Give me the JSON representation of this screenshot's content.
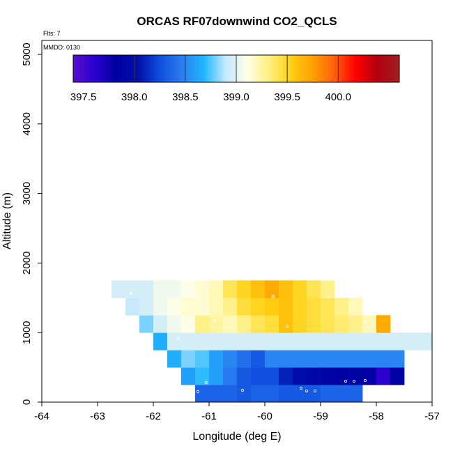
{
  "chart_data": {
    "type": "heatmap",
    "title": "ORCAS RF07downwind CO2_QCLS",
    "xlabel": "Longitude (deg E)",
    "ylabel": "Altitude (m)",
    "flts_note": "Flts: 7",
    "mmdd_note": "MMDD: 0130",
    "xlim": [
      -64,
      -57
    ],
    "ylim": [
      0,
      5200
    ],
    "x_ticks": [
      -64,
      -63,
      -62,
      -61,
      -60,
      -59,
      -58,
      -57
    ],
    "y_ticks": [
      0,
      1000,
      2000,
      3000,
      4000,
      5000
    ],
    "colorbar": {
      "range": [
        397.4,
        400.6
      ],
      "tick_values": [
        397.5,
        398.0,
        398.5,
        399.0,
        399.5,
        400.0
      ],
      "tick_labels": [
        "397.5",
        "398.0",
        "398.5",
        "399.0",
        "399.5",
        "400.0"
      ],
      "divider_values": [
        397.5,
        398.0,
        398.5,
        399.0,
        399.5,
        400.0
      ],
      "colors": [
        "#5a0fd0",
        "#2a00d0",
        "#0000a0",
        "#0010a8",
        "#1050e0",
        "#2a7cf0",
        "#1eb6ff",
        "#c4e8ff",
        "#ffffe6",
        "#fff080",
        "#ffd010",
        "#ffa000",
        "#ff6010",
        "#ff0000",
        "#b00010",
        "#a02020"
      ]
    },
    "bin_width_deg": 0.25,
    "bin_height_m": 250,
    "rows": [
      {
        "alt_low": 0,
        "lon_start": -61.25,
        "values": [
          398.35,
          398.35,
          398.35,
          398.3,
          398.35,
          398.35,
          398.3,
          398.3,
          398.3,
          398.35,
          398.35,
          398.35
        ]
      },
      {
        "alt_low": 250,
        "lon_start": -61.5,
        "values": [
          398.6,
          398.7,
          398.6,
          398.45,
          398.3,
          398.25,
          398.25,
          398.1,
          398.0,
          397.95,
          397.9,
          397.85,
          397.9,
          397.8,
          397.6,
          397.85
        ]
      },
      {
        "alt_low": 500,
        "lon_start": -61.75,
        "values": [
          398.65,
          398.8,
          398.75,
          398.6,
          398.5,
          398.4,
          398.3,
          398.5,
          398.5,
          398.5,
          398.5,
          398.5,
          398.5,
          398.5,
          398.5,
          398.5,
          398.5
        ]
      },
      {
        "alt_low": 750,
        "lon_start": -62.0,
        "values": [
          398.65,
          398.95,
          398.95,
          398.95,
          398.95,
          398.95,
          398.95,
          398.95,
          398.95,
          398.95,
          398.95,
          398.95,
          398.95,
          398.95,
          398.95,
          398.95,
          398.95,
          398.95,
          398.95,
          398.95
        ]
      },
      {
        "alt_low": 1000,
        "lon_start": -62.25,
        "values": [
          398.8,
          398.95,
          399.05,
          399.1,
          399.3,
          399.25,
          399.2,
          399.3,
          399.4,
          399.45,
          399.6,
          399.5,
          399.45,
          399.4,
          399.35,
          399.3,
          399.2,
          399.7
        ]
      },
      {
        "alt_low": 1250,
        "lon_start": -62.5,
        "values": [
          398.9,
          398.95,
          399.05,
          399.1,
          399.15,
          399.15,
          399.2,
          399.3,
          399.45,
          399.5,
          399.55,
          399.6,
          399.5,
          399.45,
          399.4,
          399.3,
          399.2
        ]
      },
      {
        "alt_low": 1500,
        "lon_start": -62.75,
        "values": [
          398.95,
          398.95,
          398.95,
          399.05,
          399.05,
          399.1,
          399.15,
          399.2,
          399.4,
          399.5,
          399.6,
          399.7,
          399.6,
          399.5,
          399.4,
          399.3
        ]
      }
    ],
    "flight_points": [
      {
        "lon": -61.2,
        "alt": 150
      },
      {
        "lon": -61.05,
        "alt": 280
      },
      {
        "lon": -60.4,
        "alt": 170
      },
      {
        "lon": -59.35,
        "alt": 200
      },
      {
        "lon": -59.25,
        "alt": 160
      },
      {
        "lon": -59.1,
        "alt": 160
      },
      {
        "lon": -58.55,
        "alt": 300
      },
      {
        "lon": -58.4,
        "alt": 300
      },
      {
        "lon": -58.2,
        "alt": 310
      },
      {
        "lon": -61.55,
        "alt": 910
      },
      {
        "lon": -60.9,
        "alt": 1170
      },
      {
        "lon": -59.85,
        "alt": 1520
      },
      {
        "lon": -59.6,
        "alt": 1090
      },
      {
        "lon": -58.85,
        "alt": 1510
      },
      {
        "lon": -58.2,
        "alt": 1150
      },
      {
        "lon": -62.4,
        "alt": 1560
      }
    ]
  }
}
